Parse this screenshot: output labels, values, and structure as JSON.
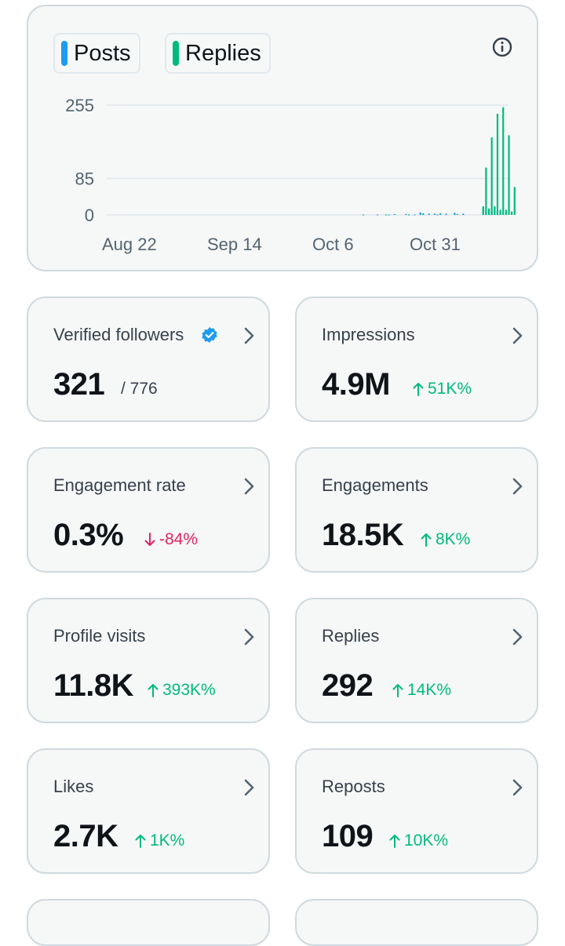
{
  "chart": {
    "legend": [
      {
        "label": "Posts",
        "color": "#1d9bf0"
      },
      {
        "label": "Replies",
        "color": "#00ba7c"
      }
    ],
    "info_icon": "info-circle-icon"
  },
  "chart_data": {
    "type": "bar",
    "ylim": [
      0,
      255
    ],
    "y_ticks": [
      "255",
      "85",
      "0"
    ],
    "x_ticks": [
      "Aug 22",
      "Sep 14",
      "Oct 6",
      "Oct 31"
    ],
    "grid": true,
    "legend_position": "top-left",
    "series": [
      {
        "name": "Posts",
        "color": "#1d9bf0",
        "values": [
          {
            "d": 97,
            "v": 1
          },
          {
            "d": 101,
            "v": 1
          },
          {
            "d": 103,
            "v": 2
          },
          {
            "d": 107,
            "v": 2
          },
          {
            "d": 108,
            "v": 1
          },
          {
            "d": 110,
            "v": 1
          },
          {
            "d": 112,
            "v": 6
          },
          {
            "d": 113,
            "v": 4
          },
          {
            "d": 115,
            "v": 3
          },
          {
            "d": 117,
            "v": 3
          },
          {
            "d": 119,
            "v": 4
          },
          {
            "d": 121,
            "v": 3
          },
          {
            "d": 124,
            "v": 5
          },
          {
            "d": 127,
            "v": 3
          },
          {
            "d": 134,
            "v": 15
          },
          {
            "d": 135,
            "v": 10
          },
          {
            "d": 136,
            "v": 14
          },
          {
            "d": 137,
            "v": 10
          },
          {
            "d": 138,
            "v": 18
          },
          {
            "d": 139,
            "v": 9
          },
          {
            "d": 140,
            "v": 12
          }
        ]
      },
      {
        "name": "Replies",
        "color": "#00ba7c",
        "values": [
          {
            "d": 92,
            "v": 1
          },
          {
            "d": 100,
            "v": 1
          },
          {
            "d": 108,
            "v": 1
          },
          {
            "d": 113,
            "v": 2
          },
          {
            "d": 118,
            "v": 1
          },
          {
            "d": 125,
            "v": 2
          },
          {
            "d": 134,
            "v": 20
          },
          {
            "d": 135,
            "v": 110
          },
          {
            "d": 136,
            "v": 15
          },
          {
            "d": 137,
            "v": 180
          },
          {
            "d": 138,
            "v": 20
          },
          {
            "d": 139,
            "v": 235
          },
          {
            "d": 140,
            "v": 10
          },
          {
            "d": 141,
            "v": 250
          },
          {
            "d": 142,
            "v": 12
          },
          {
            "d": 143,
            "v": 185
          },
          {
            "d": 144,
            "v": 8
          },
          {
            "d": 145,
            "v": 65
          }
        ]
      }
    ]
  },
  "stats": [
    {
      "label": "Verified followers",
      "value": "321",
      "sub": "/ 776",
      "verified": true
    },
    {
      "label": "Impressions",
      "value": "4.9M",
      "delta": "51K%",
      "direction": "up"
    },
    {
      "label": "Engagement rate",
      "value": "0.3%",
      "delta": "-84%",
      "direction": "down"
    },
    {
      "label": "Engagements",
      "value": "18.5K",
      "delta": "8K%",
      "direction": "up"
    },
    {
      "label": "Profile visits",
      "value": "11.8K",
      "delta": "393K%",
      "direction": "up"
    },
    {
      "label": "Replies",
      "value": "292",
      "delta": "14K%",
      "direction": "up"
    },
    {
      "label": "Likes",
      "value": "2.7K",
      "delta": "1K%",
      "direction": "up"
    },
    {
      "label": "Reposts",
      "value": "109",
      "delta": "10K%",
      "direction": "up"
    }
  ],
  "colors": {
    "up": "#00ba7c",
    "down": "#e0245e",
    "verified": "#1d9bf0"
  }
}
